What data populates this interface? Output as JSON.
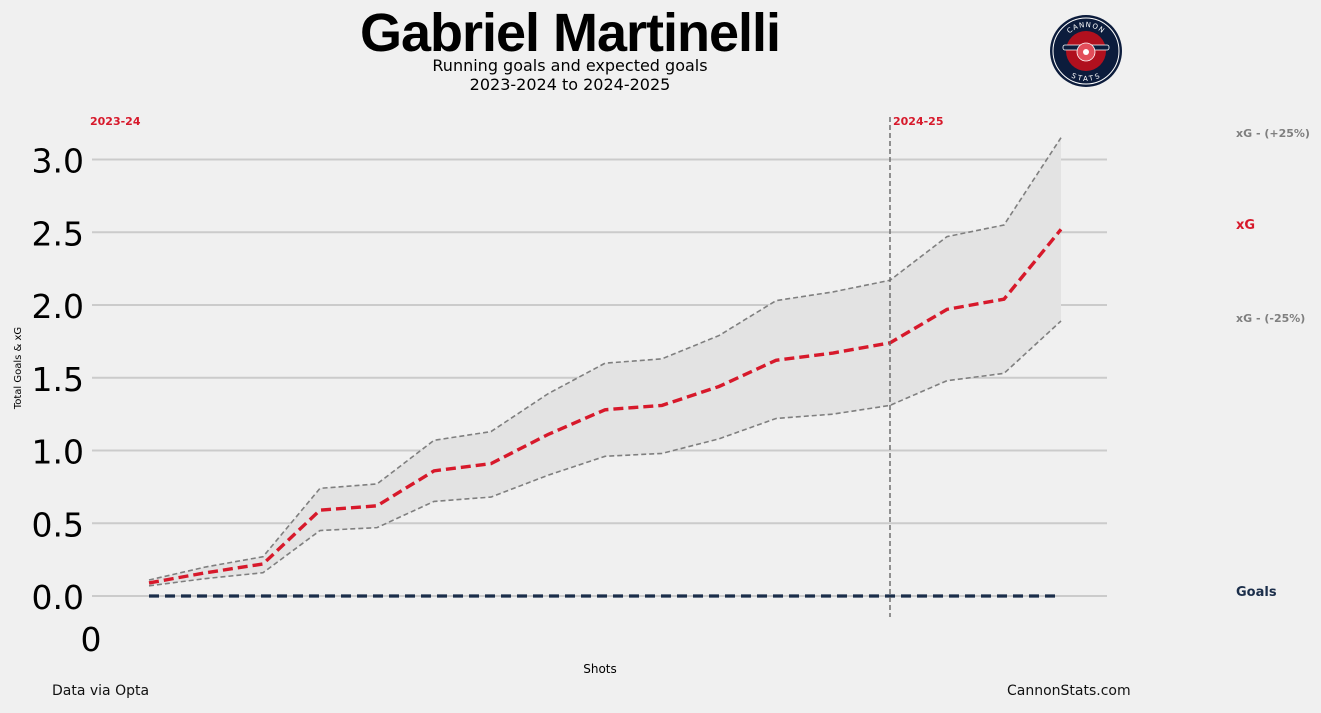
{
  "header": {
    "title": "Gabriel Martinelli",
    "subtitle_line1": "Running goals and expected goals",
    "subtitle_line2": "2023-2024 to 2024-2025"
  },
  "logo": {
    "top_text": "CANNON",
    "bottom_text": "STATS",
    "icon": "cannon-icon"
  },
  "footer": {
    "source": "Data via Opta",
    "site": "CannonStats.com"
  },
  "colors": {
    "xg": "#d7192b",
    "goals": "#1b2e4a",
    "band": "#7f7f7f",
    "season": "#d7192b",
    "background": "#f0f0f0"
  },
  "chart_data": {
    "type": "line",
    "xlabel": "Shots",
    "ylabel": "Total Goals & xG",
    "ylim": [
      0,
      3.2
    ],
    "yticks": [
      "0.0",
      "0.5",
      "1.0",
      "1.5",
      "2.0",
      "2.5",
      "3.0"
    ],
    "xtick_label": "0",
    "grid": true,
    "x": [
      1,
      2,
      3,
      4,
      5,
      6,
      7,
      8,
      9,
      10,
      11,
      12,
      13,
      14,
      15,
      16,
      17
    ],
    "series": [
      {
        "name": "xG - (+25%)",
        "values": [
          0.11,
          0.2,
          0.27,
          0.74,
          0.77,
          1.07,
          1.13,
          1.39,
          1.6,
          1.63,
          1.79,
          2.03,
          2.09,
          2.17,
          2.47,
          2.55,
          3.15
        ]
      },
      {
        "name": "xG",
        "values": [
          0.09,
          0.16,
          0.22,
          0.59,
          0.62,
          0.86,
          0.91,
          1.11,
          1.28,
          1.31,
          1.44,
          1.62,
          1.67,
          1.74,
          1.97,
          2.04,
          2.52
        ]
      },
      {
        "name": "xG - (-25%)",
        "values": [
          0.07,
          0.12,
          0.16,
          0.45,
          0.47,
          0.65,
          0.68,
          0.83,
          0.96,
          0.98,
          1.08,
          1.22,
          1.25,
          1.31,
          1.48,
          1.53,
          1.89
        ]
      },
      {
        "name": "Goals",
        "values": [
          0,
          0,
          0,
          0,
          0,
          0,
          0,
          0,
          0,
          0,
          0,
          0,
          0,
          0,
          0,
          0,
          0
        ]
      }
    ],
    "season_markers": [
      {
        "label": "2023-24",
        "at_shot": null
      },
      {
        "label": "2024-25",
        "at_shot": 14
      }
    ]
  }
}
